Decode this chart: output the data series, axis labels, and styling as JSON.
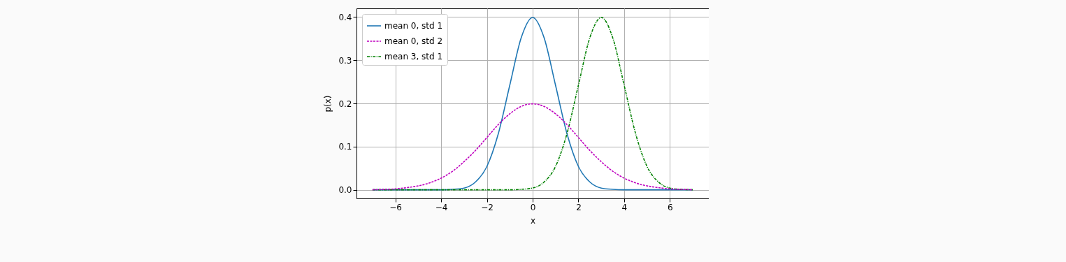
{
  "chart_data": {
    "type": "line",
    "xlabel": "x",
    "ylabel": "p(x)",
    "x": [
      -7,
      -6.5,
      -6,
      -5.5,
      -5,
      -4.5,
      -4,
      -3.5,
      -3,
      -2.5,
      -2,
      -1.5,
      -1,
      -0.5,
      0,
      0.5,
      1,
      1.5,
      2,
      2.5,
      3,
      3.5,
      4,
      4.5,
      5,
      5.5,
      6,
      6.5,
      7
    ],
    "series": [
      {
        "name": "mean 0, std 1",
        "color": "#1f77b4",
        "line_style": "solid",
        "values": [
          0,
          0,
          0,
          0,
          0,
          0,
          0,
          0.001,
          0.004,
          0.018,
          0.054,
          0.13,
          0.242,
          0.352,
          0.399,
          0.352,
          0.242,
          0.13,
          0.054,
          0.018,
          0.004,
          0.001,
          0,
          0,
          0,
          0,
          0,
          0,
          0
        ]
      },
      {
        "name": "mean 0, std 2",
        "color": "#bf00bf",
        "line_style": "dashed",
        "values": [
          0,
          0.001,
          0.002,
          0.005,
          0.009,
          0.016,
          0.027,
          0.043,
          0.065,
          0.091,
          0.121,
          0.151,
          0.176,
          0.193,
          0.199,
          0.193,
          0.176,
          0.151,
          0.121,
          0.091,
          0.065,
          0.043,
          0.027,
          0.016,
          0.009,
          0.005,
          0.002,
          0.001,
          0
        ]
      },
      {
        "name": "mean 3, std 1",
        "color": "#008000",
        "line_style": "dashdot",
        "values": [
          0,
          0,
          0,
          0,
          0,
          0,
          0,
          0,
          0,
          0,
          0,
          0,
          0,
          0.001,
          0.004,
          0.018,
          0.054,
          0.13,
          0.242,
          0.352,
          0.399,
          0.352,
          0.242,
          0.13,
          0.054,
          0.018,
          0.004,
          0.001,
          0
        ]
      }
    ],
    "xlim": [
      -7.7,
      7.7
    ],
    "xticks": [
      {
        "value": -6,
        "label": "−6"
      },
      {
        "value": -4,
        "label": "−4"
      },
      {
        "value": -2,
        "label": "−2"
      },
      0,
      2,
      4,
      6
    ],
    "ylim": [
      -0.02,
      0.42
    ],
    "yticks": [
      {
        "value": 0,
        "label": "0.0"
      },
      0.1,
      0.2,
      0.3,
      0.4
    ],
    "grid": true,
    "legend": "top left"
  }
}
